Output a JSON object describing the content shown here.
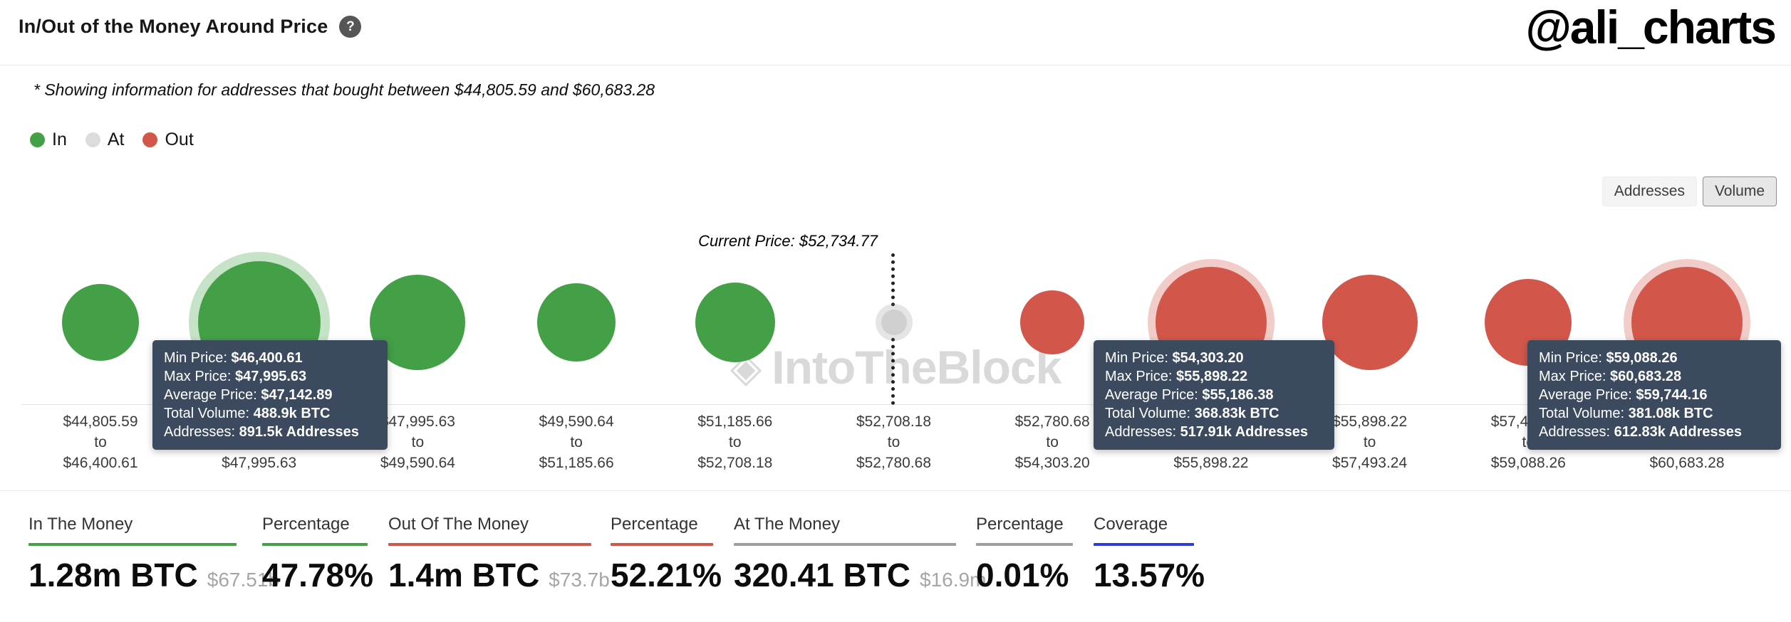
{
  "page": {
    "title": "In/Out of the Money Around Price",
    "help_icon": "?",
    "handle": "@ali_charts",
    "subtitle": "* Showing information for addresses that bought between $44,805.59 and $60,683.28"
  },
  "legend": {
    "items": [
      {
        "label": "In",
        "color": "#43a047"
      },
      {
        "label": "At",
        "color": "#dcdcdc"
      },
      {
        "label": "Out",
        "color": "#d2574a"
      }
    ]
  },
  "view_toggle": {
    "options": [
      {
        "label": "Addresses",
        "selected": false
      },
      {
        "label": "Volume",
        "selected": true
      }
    ]
  },
  "chart_data": {
    "type": "scatter",
    "title": "In/Out of the Money Around Price",
    "watermark": "IntoTheBlock",
    "current_price": "$52,734.77",
    "current_price_label": "Current Price: $52,734.77",
    "range_separator": "to",
    "colors": {
      "in": "#43a047",
      "at": "#d0d0d0",
      "out": "#d2574a"
    },
    "bubbles": [
      {
        "status": "in",
        "min": "$44,805.59",
        "max": "$46,400.61",
        "r": 54
      },
      {
        "status": "in",
        "min": "$46,400.61",
        "max": "$47,995.63",
        "r": 86,
        "halo": 13,
        "average_price": "$47,142.89",
        "total_volume": "488.9k BTC",
        "addresses": "891.5k Addresses"
      },
      {
        "status": "in",
        "min": "$47,995.63",
        "max": "$49,590.64",
        "r": 67
      },
      {
        "status": "in",
        "min": "$49,590.64",
        "max": "$51,185.66",
        "r": 55
      },
      {
        "status": "in",
        "min": "$51,185.66",
        "max": "$52,708.18",
        "r": 56
      },
      {
        "status": "at",
        "min": "$52,708.18",
        "max": "$52,780.68",
        "r": 18,
        "halo": 8
      },
      {
        "status": "out",
        "min": "$52,780.68",
        "max": "$54,303.20",
        "r": 45
      },
      {
        "status": "out",
        "min": "$54,303.20",
        "max": "$55,898.22",
        "r": 78,
        "halo": 11,
        "average_price": "$55,186.38",
        "total_volume": "368.83k BTC",
        "addresses": "517.91k Addresses"
      },
      {
        "status": "out",
        "min": "$55,898.22",
        "max": "$57,493.24",
        "r": 67
      },
      {
        "status": "out",
        "min": "$57,493.24",
        "max": "$59,088.26",
        "r": 61
      },
      {
        "status": "out",
        "min": "$59,088.26",
        "max": "$60,683.28",
        "r": 78,
        "halo": 11,
        "average_price": "$59,744.16",
        "total_volume": "381.08k BTC",
        "addresses": "612.83k Addresses"
      }
    ]
  },
  "tooltips": [
    {
      "rows": [
        {
          "label": "Min Price:",
          "value": "$46,400.61"
        },
        {
          "label": "Max Price:",
          "value": "$47,995.63"
        },
        {
          "label": "Average Price:",
          "value": "$47,142.89"
        },
        {
          "label": "Total Volume:",
          "value": "488.9k BTC"
        },
        {
          "label": "Addresses:",
          "value": "891.5k Addresses"
        }
      ]
    },
    {
      "rows": [
        {
          "label": "Min Price:",
          "value": "$54,303.20"
        },
        {
          "label": "Max Price:",
          "value": "$55,898.22"
        },
        {
          "label": "Average Price:",
          "value": "$55,186.38"
        },
        {
          "label": "Total Volume:",
          "value": "368.83k BTC"
        },
        {
          "label": "Addresses:",
          "value": "517.91k Addresses"
        }
      ]
    },
    {
      "rows": [
        {
          "label": "Min Price:",
          "value": "$59,088.26"
        },
        {
          "label": "Max Price:",
          "value": "$60,683.28"
        },
        {
          "label": "Average Price:",
          "value": "$59,744.16"
        },
        {
          "label": "Total Volume:",
          "value": "381.08k BTC"
        },
        {
          "label": "Addresses:",
          "value": "612.83k Addresses"
        }
      ]
    }
  ],
  "stats": [
    {
      "label": "In The Money",
      "value": "1.28m BTC",
      "sub": "$67.51b",
      "color": "#43a047"
    },
    {
      "label": "Percentage",
      "value": "47.78%",
      "color": "#43a047"
    },
    {
      "label": "Out Of The Money",
      "value": "1.4m BTC",
      "sub": "$73.7b",
      "color": "#d2574a"
    },
    {
      "label": "Percentage",
      "value": "52.21%",
      "color": "#d2574a"
    },
    {
      "label": "At The Money",
      "value": "320.41 BTC",
      "sub": "$16.9m",
      "color": "#9e9e9e"
    },
    {
      "label": "Percentage",
      "value": "0.01%",
      "color": "#9e9e9e"
    },
    {
      "label": "Coverage",
      "value": "13.57%",
      "color": "#2d3fd8"
    }
  ]
}
